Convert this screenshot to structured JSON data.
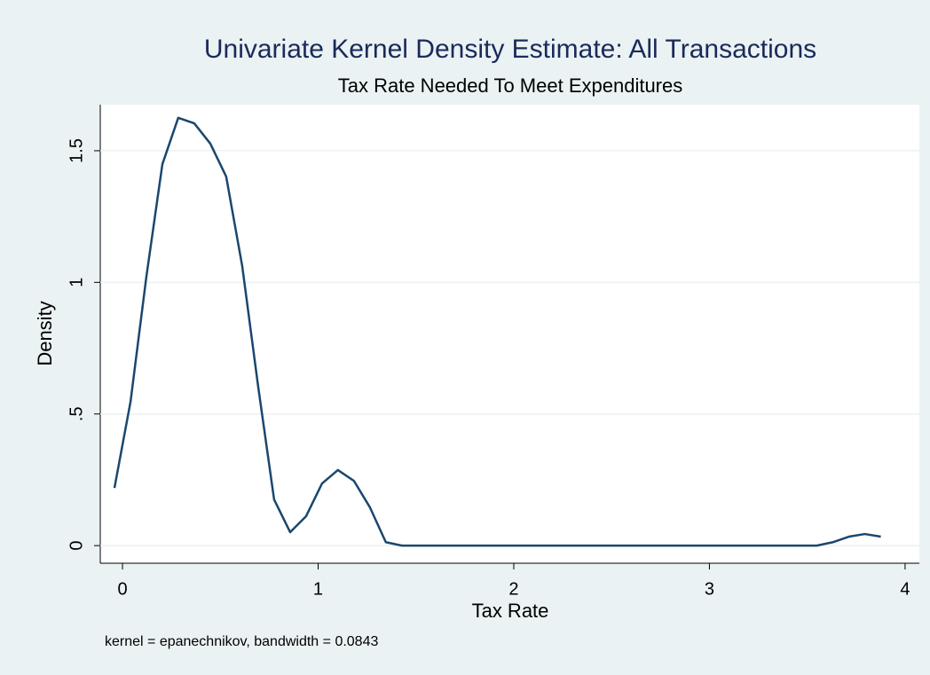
{
  "chart_data": {
    "type": "line",
    "title": "Univariate Kernel Density Estimate: All Transactions",
    "subtitle": "Tax Rate Needed To Meet Expenditures",
    "x_label": "Tax Rate",
    "y_label": "Density",
    "note": "kernel = epanechnikov, bandwidth = 0.0843",
    "x": [
      -0.041,
      0.041,
      0.122,
      0.204,
      0.285,
      0.367,
      0.449,
      0.53,
      0.612,
      0.693,
      0.775,
      0.857,
      0.938,
      1.02,
      1.101,
      1.183,
      1.265,
      1.346,
      1.428,
      1.509,
      1.591,
      1.673,
      1.754,
      1.836,
      1.917,
      1.999,
      2.081,
      2.162,
      2.244,
      2.325,
      2.407,
      2.489,
      2.57,
      2.652,
      2.733,
      2.815,
      2.897,
      2.978,
      3.06,
      3.141,
      3.223,
      3.305,
      3.386,
      3.468,
      3.549,
      3.631,
      3.713,
      3.794,
      3.876
    ],
    "series": [
      {
        "color": "#1a476f",
        "values": [
          0.219,
          0.546,
          1.021,
          1.449,
          1.625,
          1.604,
          1.527,
          1.402,
          1.062,
          0.607,
          0.175,
          0.051,
          0.111,
          0.236,
          0.287,
          0.246,
          0.145,
          0.013,
          0,
          0,
          0,
          0,
          0,
          0,
          0,
          0,
          0,
          0,
          0,
          0,
          0,
          0,
          0,
          0,
          0,
          0,
          0,
          0,
          0,
          0,
          0,
          0,
          0,
          0,
          0,
          0.013,
          0.034,
          0.044,
          0.034
        ]
      }
    ],
    "xlim": [
      -0.1135,
      4.073
    ],
    "xticks": [
      0,
      1,
      2,
      3,
      4
    ],
    "ylim": [
      -0.067,
      1.675
    ],
    "yticks": [
      0,
      {
        "value": 0.5,
        "label": ".5"
      },
      1,
      1.5
    ],
    "grid": true
  }
}
